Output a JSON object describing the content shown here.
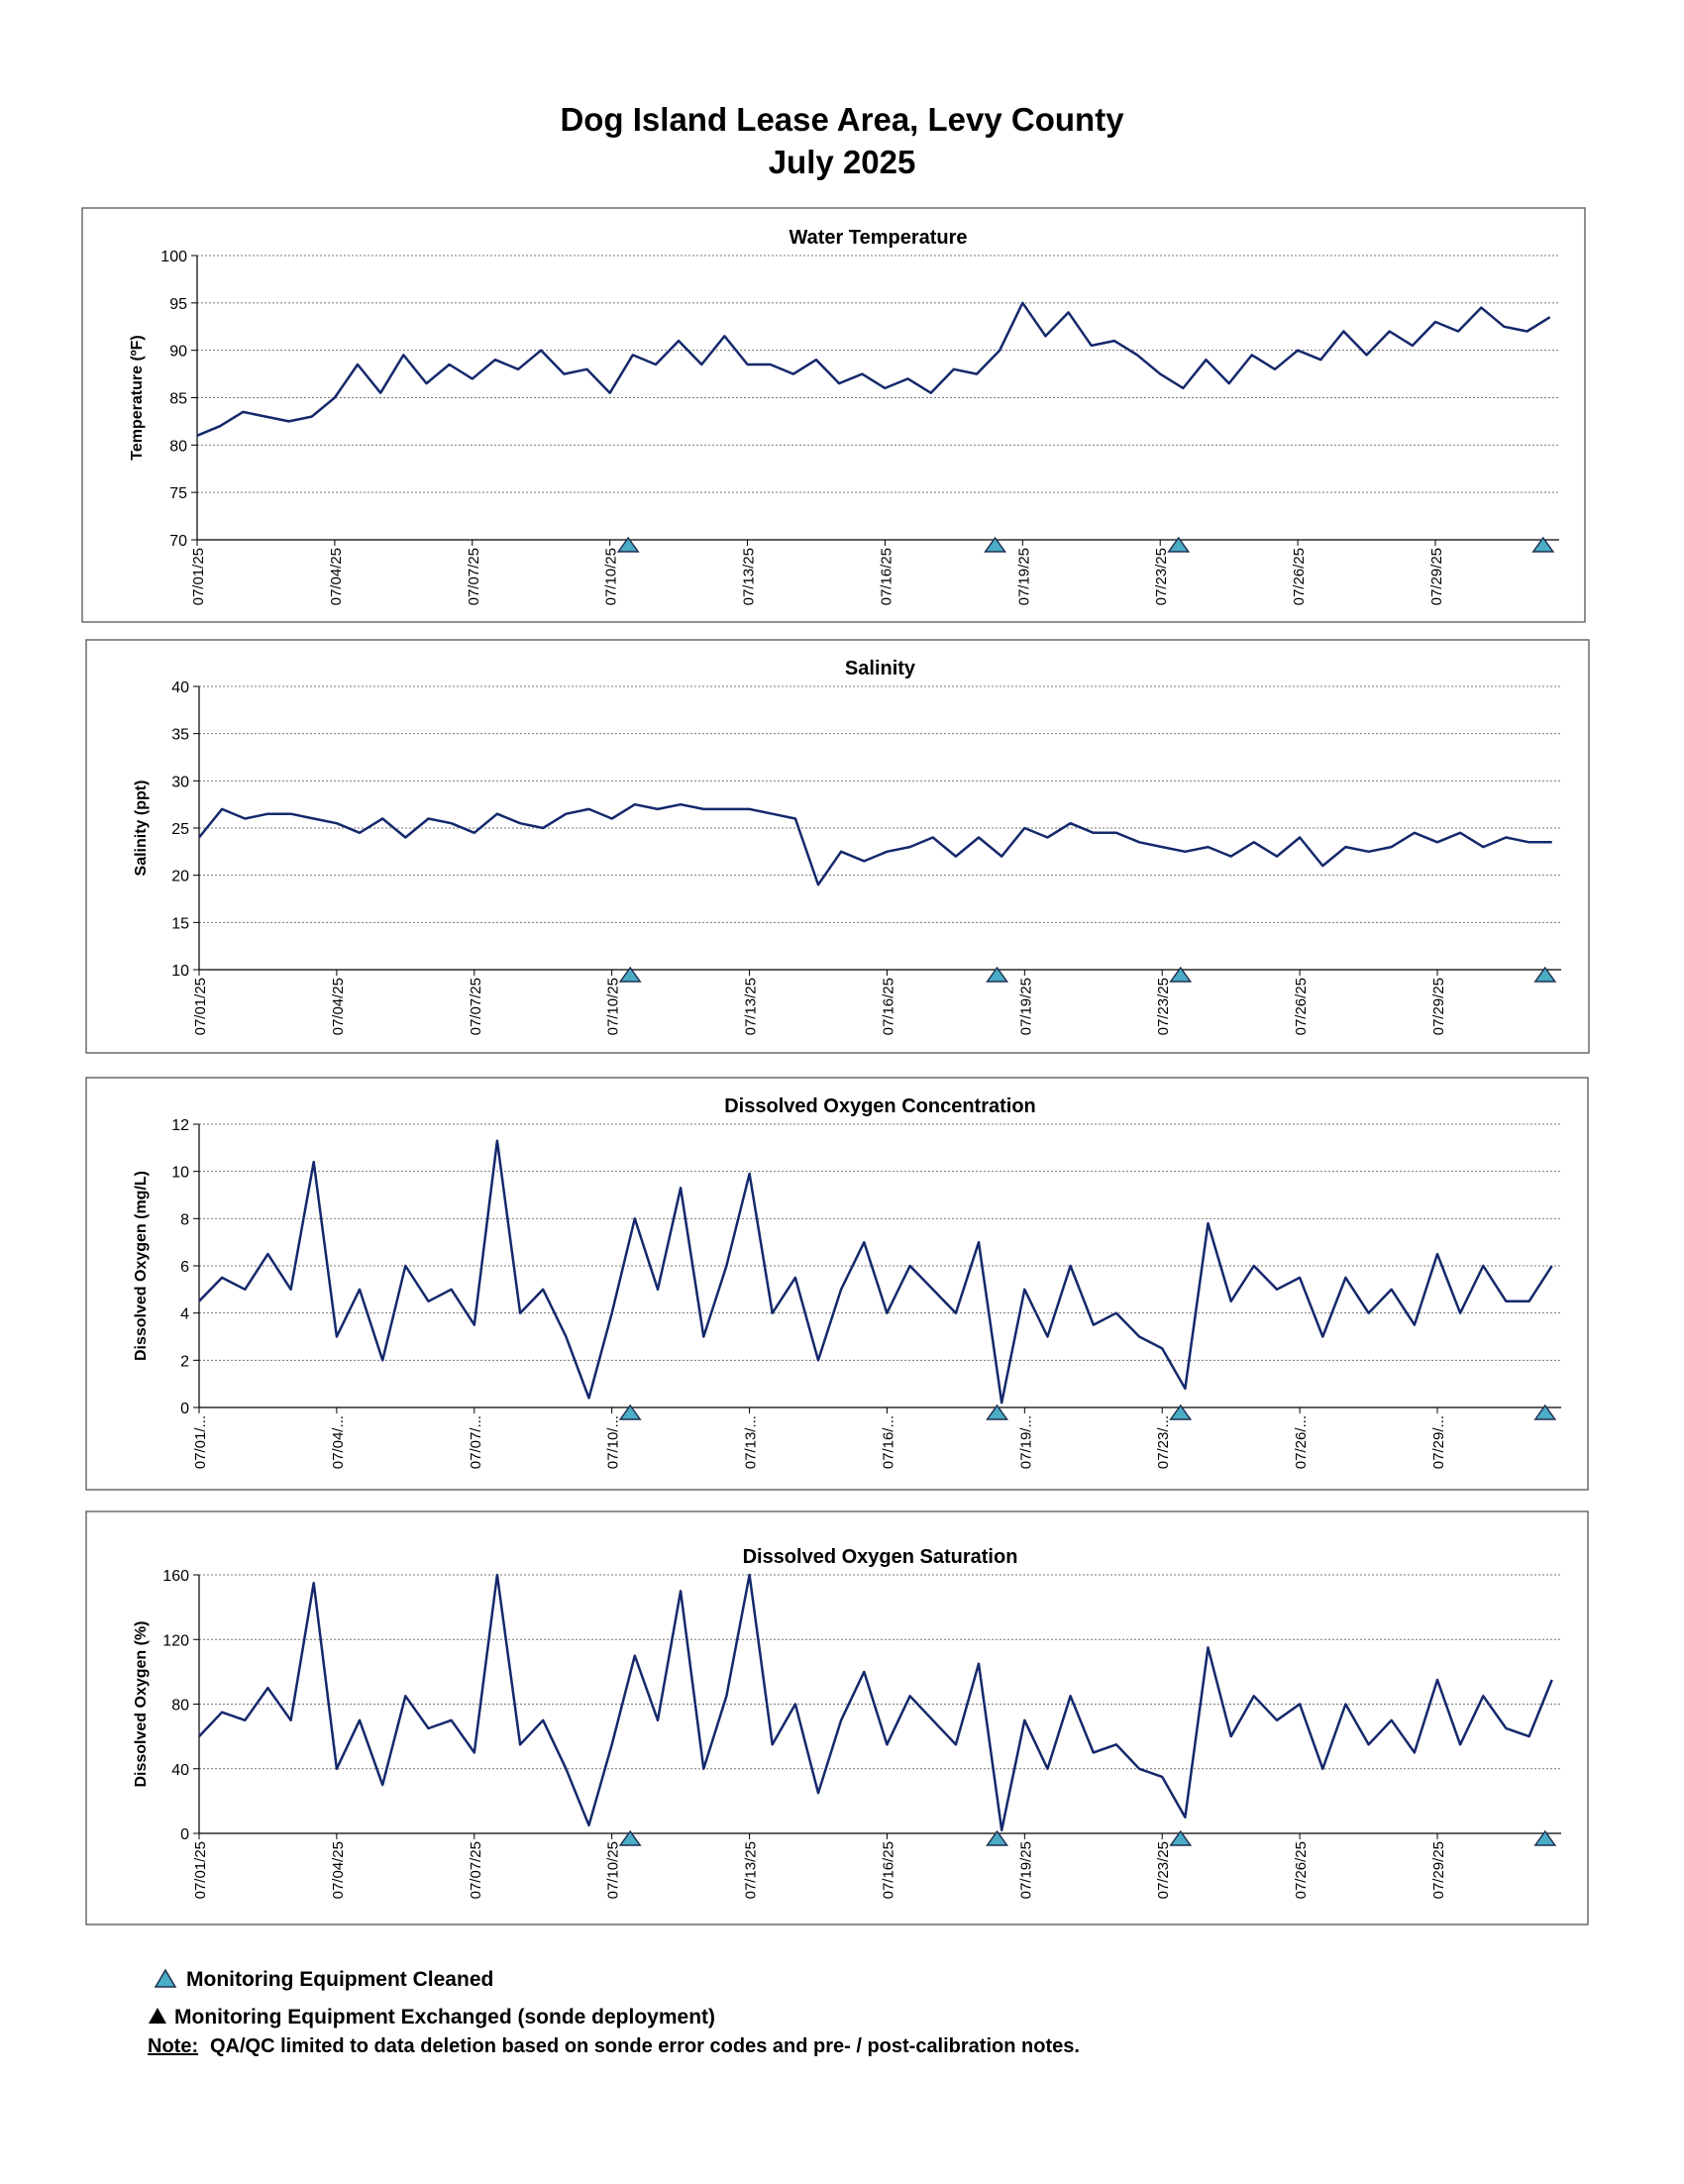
{
  "header": {
    "title": "Dog Island Lease Area, Levy County",
    "subtitle": "July 2025"
  },
  "chart_data": [
    {
      "type": "line",
      "title": "Water Temperature",
      "y_label": "Temperature (ºF)",
      "color": "#14286b",
      "x": [
        0,
        0.5,
        1,
        1.5,
        2,
        2.5,
        3,
        3.5,
        4,
        4.5,
        5,
        5.5,
        6,
        6.5,
        7,
        7.5,
        8,
        8.5,
        9,
        9.5,
        10,
        10.5,
        11,
        11.5,
        12,
        12.5,
        13,
        13.5,
        14,
        14.5,
        15,
        15.5,
        16,
        16.5,
        17,
        17.5,
        18,
        18.5,
        19,
        19.5,
        20,
        20.5,
        21,
        21.5,
        22,
        22.5,
        23,
        23.5,
        24,
        24.5,
        25,
        25.5,
        26,
        26.5,
        27,
        27.5,
        28,
        28.5,
        29,
        29.5
      ],
      "values": [
        81,
        82,
        83.5,
        83,
        82.5,
        83,
        85,
        88.5,
        85.5,
        89.5,
        86.5,
        88.5,
        87,
        89,
        88,
        90,
        87.5,
        88,
        85.5,
        89.5,
        88.5,
        91,
        88.5,
        91.5,
        88.5,
        88.5,
        87.5,
        89,
        86.5,
        87.5,
        86,
        87,
        85.5,
        88,
        87.5,
        90,
        95,
        91.5,
        94,
        90.5,
        91,
        89.5,
        87.5,
        86,
        89,
        86.5,
        89.5,
        88,
        90,
        89,
        92,
        89.5,
        92,
        90.5,
        93,
        92,
        94.5,
        92.5,
        92,
        93.5
      ],
      "xlim": [
        0,
        29.7
      ],
      "xticks": [
        {
          "value": 0,
          "label": "07/01/25"
        },
        {
          "value": 3,
          "label": "07/04/25"
        },
        {
          "value": 6,
          "label": "07/07/25"
        },
        {
          "value": 9,
          "label": "07/10/25"
        },
        {
          "value": 12,
          "label": "07/13/25"
        },
        {
          "value": 15,
          "label": "07/16/25"
        },
        {
          "value": 18,
          "label": "07/19/25"
        },
        {
          "value": 21,
          "label": "07/23/25"
        },
        {
          "value": 24,
          "label": "07/26/25"
        },
        {
          "value": 27,
          "label": "07/29/25"
        }
      ],
      "ylim": [
        70,
        100
      ],
      "yticks": [
        70,
        75,
        80,
        85,
        90,
        95,
        100
      ],
      "grid": true,
      "cleaned_events": [
        9.4,
        17.4,
        21.4,
        29.35
      ]
    },
    {
      "type": "line",
      "title": "Salinity",
      "y_label": "Salinity (ppt)",
      "color": "#14286b",
      "x": [
        0,
        0.5,
        1,
        1.5,
        2,
        2.5,
        3,
        3.5,
        4,
        4.5,
        5,
        5.5,
        6,
        6.5,
        7,
        7.5,
        8,
        8.5,
        9,
        9.5,
        10,
        10.5,
        11,
        11.5,
        12,
        12.5,
        13,
        13.5,
        14,
        14.5,
        15,
        15.5,
        16,
        16.5,
        17,
        17.5,
        18,
        18.5,
        19,
        19.5,
        20,
        20.5,
        21,
        21.5,
        22,
        22.5,
        23,
        23.5,
        24,
        24.5,
        25,
        25.5,
        26,
        26.5,
        27,
        27.5,
        28,
        28.5,
        29,
        29.5
      ],
      "values": [
        24,
        27,
        26,
        26.5,
        26.5,
        26,
        25.5,
        24.5,
        26,
        24,
        26,
        25.5,
        24.5,
        26.5,
        25.5,
        25,
        26.5,
        27,
        26,
        27.5,
        27,
        27.5,
        27,
        27,
        27,
        26.5,
        26,
        19,
        22.5,
        21.5,
        22.5,
        23,
        24,
        22,
        24,
        22,
        25,
        24,
        25.5,
        24.5,
        24.5,
        23.5,
        23,
        22.5,
        23,
        22,
        23.5,
        22,
        24,
        21,
        23,
        22.5,
        23,
        24.5,
        23.5,
        24.5,
        23,
        24,
        23.5,
        23.5
      ],
      "xlim": [
        0,
        29.7
      ],
      "xticks": [
        {
          "value": 0,
          "label": "07/01/25"
        },
        {
          "value": 3,
          "label": "07/04/25"
        },
        {
          "value": 6,
          "label": "07/07/25"
        },
        {
          "value": 9,
          "label": "07/10/25"
        },
        {
          "value": 12,
          "label": "07/13/25"
        },
        {
          "value": 15,
          "label": "07/16/25"
        },
        {
          "value": 18,
          "label": "07/19/25"
        },
        {
          "value": 21,
          "label": "07/23/25"
        },
        {
          "value": 24,
          "label": "07/26/25"
        },
        {
          "value": 27,
          "label": "07/29/25"
        }
      ],
      "ylim": [
        10,
        40
      ],
      "yticks": [
        10,
        15,
        20,
        25,
        30,
        35,
        40
      ],
      "grid": true,
      "cleaned_events": [
        9.4,
        17.4,
        21.4,
        29.35
      ]
    },
    {
      "type": "line",
      "title": "Dissolved Oxygen Concentration",
      "y_label": "Dissolved Oxygen (mg/L)",
      "color": "#14286b",
      "x": [
        0,
        0.5,
        1,
        1.5,
        2,
        2.5,
        3,
        3.5,
        4,
        4.5,
        5,
        5.5,
        6,
        6.5,
        7,
        7.5,
        8,
        8.5,
        9,
        9.5,
        10,
        10.5,
        11,
        11.5,
        12,
        12.5,
        13,
        13.5,
        14,
        14.5,
        15,
        15.5,
        16,
        16.5,
        17,
        17.5,
        18,
        18.5,
        19,
        19.5,
        20,
        20.5,
        21,
        21.5,
        22,
        22.5,
        23,
        23.5,
        24,
        24.5,
        25,
        25.5,
        26,
        26.5,
        27,
        27.5,
        28,
        28.5,
        29,
        29.5
      ],
      "values": [
        4.5,
        5.5,
        5,
        6.5,
        5,
        10.4,
        3,
        5,
        2,
        6,
        4.5,
        5,
        3.5,
        11.3,
        4,
        5,
        3,
        0.4,
        4,
        8,
        5,
        9.3,
        3,
        6,
        9.9,
        4,
        5.5,
        2,
        5,
        7,
        4,
        6,
        5,
        4,
        7,
        0.2,
        5,
        3,
        6,
        3.5,
        4,
        3,
        2.5,
        0.8,
        7.8,
        4.5,
        6,
        5,
        5.5,
        3,
        5.5,
        4,
        5,
        3.5,
        6.5,
        4,
        6,
        4.5,
        4.5,
        6
      ],
      "xlim": [
        0,
        29.7
      ],
      "xticks": [
        {
          "value": 0,
          "label": "07/01/..."
        },
        {
          "value": 3,
          "label": "07/04/..."
        },
        {
          "value": 6,
          "label": "07/07/..."
        },
        {
          "value": 9,
          "label": "07/10/..."
        },
        {
          "value": 12,
          "label": "07/13/..."
        },
        {
          "value": 15,
          "label": "07/16/..."
        },
        {
          "value": 18,
          "label": "07/19/..."
        },
        {
          "value": 21,
          "label": "07/23/..."
        },
        {
          "value": 24,
          "label": "07/26/..."
        },
        {
          "value": 27,
          "label": "07/29/..."
        }
      ],
      "ylim": [
        0,
        12
      ],
      "yticks": [
        0,
        2,
        4,
        6,
        8,
        10,
        12
      ],
      "grid": true,
      "cleaned_events": [
        9.4,
        17.4,
        21.4,
        29.35
      ]
    },
    {
      "type": "line",
      "title": "Dissolved Oxygen Saturation",
      "y_label": "Dissolved Oxygen (%)",
      "color": "#14286b",
      "x": [
        0,
        0.5,
        1,
        1.5,
        2,
        2.5,
        3,
        3.5,
        4,
        4.5,
        5,
        5.5,
        6,
        6.5,
        7,
        7.5,
        8,
        8.5,
        9,
        9.5,
        10,
        10.5,
        11,
        11.5,
        12,
        12.5,
        13,
        13.5,
        14,
        14.5,
        15,
        15.5,
        16,
        16.5,
        17,
        17.5,
        18,
        18.5,
        19,
        19.5,
        20,
        20.5,
        21,
        21.5,
        22,
        22.5,
        23,
        23.5,
        24,
        24.5,
        25,
        25.5,
        26,
        26.5,
        27,
        27.5,
        28,
        28.5,
        29,
        29.5
      ],
      "values": [
        60,
        75,
        70,
        90,
        70,
        155,
        40,
        70,
        30,
        85,
        65,
        70,
        50,
        160,
        55,
        70,
        40,
        5,
        55,
        110,
        70,
        150,
        40,
        85,
        160,
        55,
        80,
        25,
        70,
        100,
        55,
        85,
        70,
        55,
        105,
        2,
        70,
        40,
        85,
        50,
        55,
        40,
        35,
        10,
        115,
        60,
        85,
        70,
        80,
        40,
        80,
        55,
        70,
        50,
        95,
        55,
        85,
        65,
        60,
        95
      ],
      "xlim": [
        0,
        29.7
      ],
      "xticks": [
        {
          "value": 0,
          "label": "07/01/25"
        },
        {
          "value": 3,
          "label": "07/04/25"
        },
        {
          "value": 6,
          "label": "07/07/25"
        },
        {
          "value": 9,
          "label": "07/10/25"
        },
        {
          "value": 12,
          "label": "07/13/25"
        },
        {
          "value": 15,
          "label": "07/16/25"
        },
        {
          "value": 18,
          "label": "07/19/25"
        },
        {
          "value": 21,
          "label": "07/23/25"
        },
        {
          "value": 24,
          "label": "07/26/25"
        },
        {
          "value": 27,
          "label": "07/29/25"
        }
      ],
      "ylim": [
        0,
        160
      ],
      "yticks": [
        0,
        40,
        80,
        120,
        160
      ],
      "grid": true,
      "cleaned_events": [
        9.4,
        17.4,
        21.4,
        29.35
      ]
    }
  ],
  "legend": {
    "cleaned": "Monitoring Equipment Cleaned",
    "exchanged": "Monitoring Equipment Exchanged (sonde deployment)"
  },
  "note": {
    "label": "Note:",
    "text": "QA/QC limited to data deletion based on sonde error codes and pre- / post-calibration notes."
  }
}
